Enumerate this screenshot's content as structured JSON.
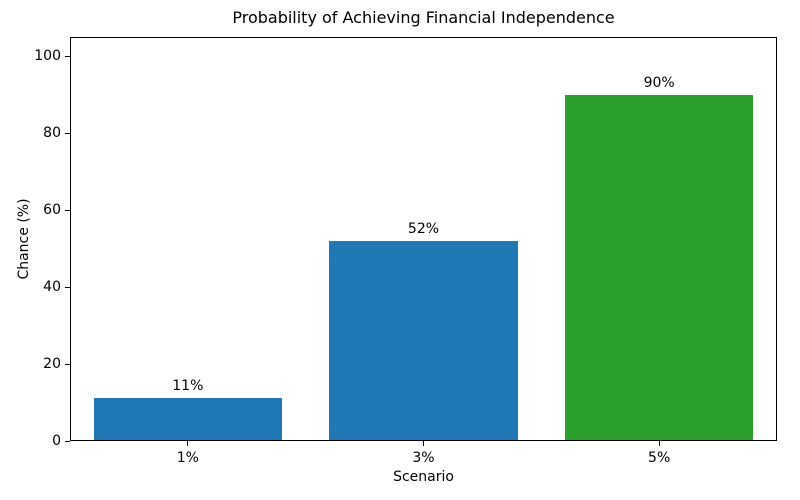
{
  "chart_data": {
    "type": "bar",
    "title": "Probability of Achieving Financial Independence",
    "xlabel": "Scenario",
    "ylabel": "Chance (%)",
    "categories": [
      "1%",
      "3%",
      "5%"
    ],
    "values": [
      11,
      52,
      90
    ],
    "bar_labels": [
      "11%",
      "52%",
      "90%"
    ],
    "bar_colors": [
      "#1f77b4",
      "#1f77b4",
      "#2ca02c"
    ],
    "ylim": [
      0,
      105
    ],
    "yticks": [
      0,
      20,
      40,
      60,
      80,
      100
    ],
    "bar_width_fraction": 0.8,
    "grid": false,
    "legend": "none",
    "axis_color": "#000000",
    "background_color": "#ffffff"
  }
}
